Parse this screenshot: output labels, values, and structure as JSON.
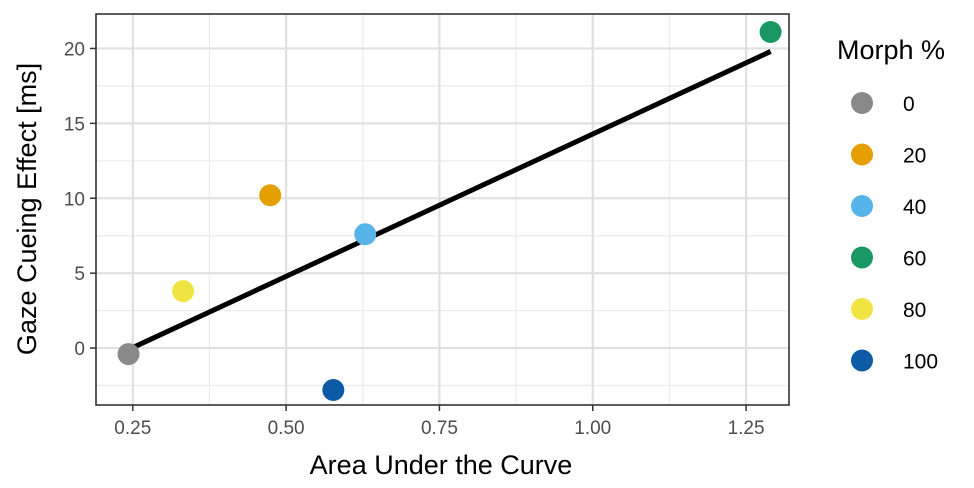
{
  "chart_data": {
    "type": "scatter",
    "title": "",
    "xlabel": "Area Under the Curve",
    "ylabel": "Gaze Cueing Effect [ms]",
    "xlim": [
      0.19,
      1.32
    ],
    "ylim": [
      -3.8,
      22.3
    ],
    "xticks": [
      0.25,
      0.5,
      0.75,
      1.0,
      1.25
    ],
    "xtick_labels": [
      "0.25",
      "0.50",
      "0.75",
      "1.00",
      "1.25"
    ],
    "yticks": [
      0,
      5,
      10,
      15,
      20
    ],
    "ytick_labels": [
      "0",
      "5",
      "10",
      "15",
      "20"
    ],
    "grid": true,
    "legend_title": "Morph %",
    "legend_position": "right",
    "series": [
      {
        "name": "0",
        "color": "#898989",
        "x": 0.243,
        "y": -0.4
      },
      {
        "name": "20",
        "color": "#E69F00",
        "x": 0.474,
        "y": 10.2
      },
      {
        "name": "40",
        "color": "#56B4E9",
        "x": 0.629,
        "y": 7.6
      },
      {
        "name": "60",
        "color": "#1A9863",
        "x": 1.29,
        "y": 21.1
      },
      {
        "name": "80",
        "color": "#F0E442",
        "x": 0.332,
        "y": 3.8
      },
      {
        "name": "100",
        "color": "#0D5BA7",
        "x": 0.577,
        "y": -2.8
      }
    ],
    "fit_line": {
      "x": [
        0.243,
        1.29
      ],
      "y": [
        -0.1,
        19.8
      ],
      "color": "#000000"
    }
  }
}
